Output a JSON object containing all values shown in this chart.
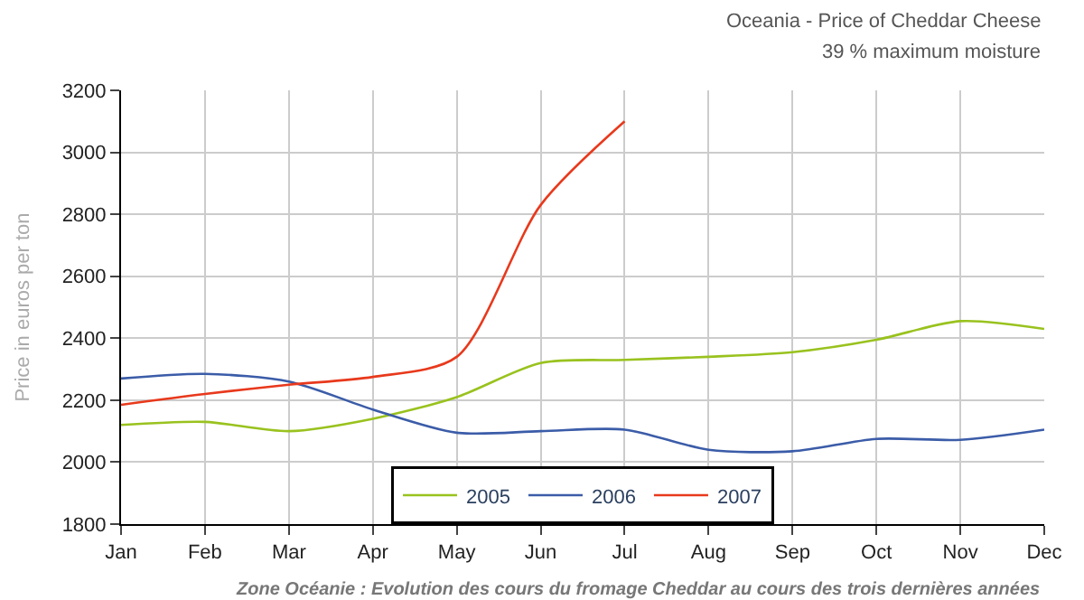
{
  "chart_data": {
    "type": "line",
    "title": "Oceania - Price of Cheddar Cheese",
    "subtitle": "39 % maximum moisture",
    "ylabel": "Price in euros per ton",
    "annotations": [
      "Zone Océanie : Evolution des cours du fromage Cheddar au cours des trois dernières années"
    ],
    "categories": [
      "Jan",
      "Feb",
      "Mar",
      "Apr",
      "May",
      "Jun",
      "Jul",
      "Aug",
      "Sep",
      "Oct",
      "Nov",
      "Dec"
    ],
    "ylim": [
      1800,
      3200
    ],
    "yticks": [
      1800,
      2000,
      2200,
      2400,
      2600,
      2800,
      3000,
      3200
    ],
    "grid": true,
    "legend": "bottom",
    "marker": "none",
    "line_style": "solid",
    "series": [
      {
        "name": "2005",
        "color": "#99c21e",
        "values": [
          2120,
          2130,
          2100,
          2140,
          2210,
          2320,
          2330,
          2340,
          2355,
          2395,
          2455,
          2430
        ]
      },
      {
        "name": "2006",
        "color": "#3b5ca8",
        "values": [
          2270,
          2285,
          2260,
          2170,
          2095,
          2100,
          2105,
          2040,
          2035,
          2075,
          2072,
          2105
        ]
      },
      {
        "name": "2007",
        "color": "#e8391c",
        "values": [
          2185,
          2220,
          2250,
          2275,
          2340,
          2830,
          3100,
          null,
          null,
          null,
          null,
          null
        ]
      }
    ]
  }
}
